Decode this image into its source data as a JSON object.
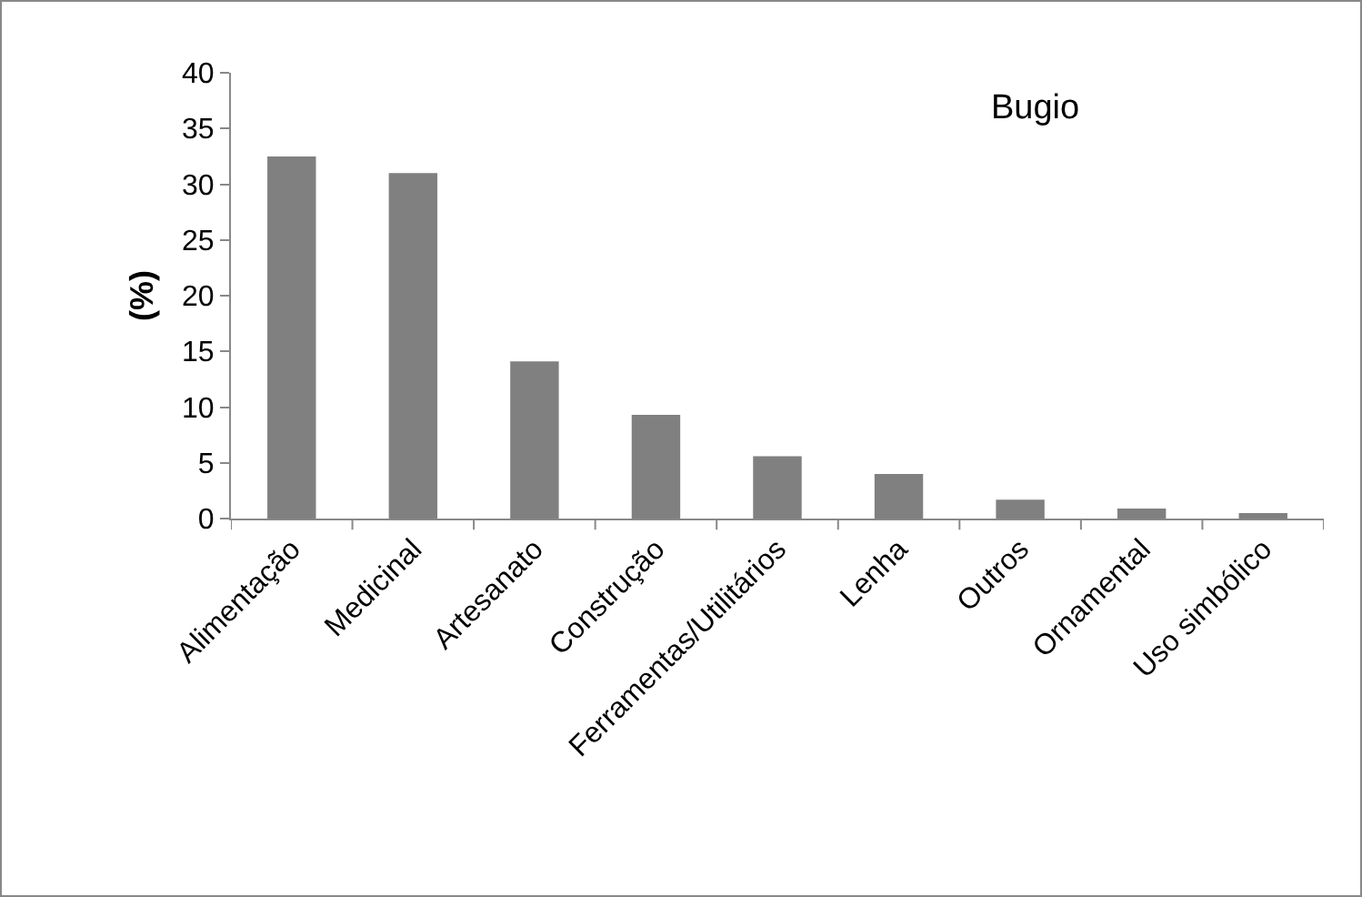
{
  "chart_data": {
    "type": "bar",
    "ylabel": "(%)",
    "annotations": [
      "Bugio"
    ],
    "categories": [
      "Alimentação",
      "Medicinal",
      "Artesanato",
      "Construção",
      "Ferramentas/Utilitários",
      "Lenha",
      "Outros",
      "Ornamental",
      "Uso simbólico"
    ],
    "values": [
      32.5,
      31.0,
      14.1,
      9.3,
      5.6,
      4.0,
      1.7,
      0.9,
      0.5
    ],
    "color": "#808080",
    "ylim": [
      0,
      40
    ],
    "yticks": [
      0,
      5,
      10,
      15,
      20,
      25,
      30,
      35,
      40
    ],
    "grid": false,
    "legend": false
  }
}
